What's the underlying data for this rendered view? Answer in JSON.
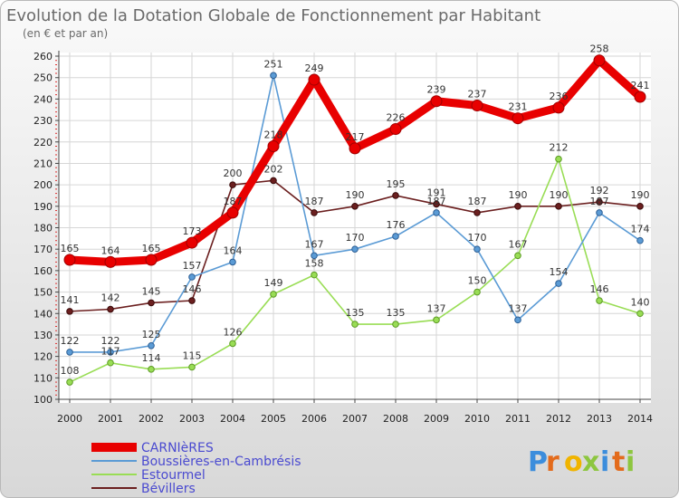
{
  "title": "Evolution de la Dotation Globale de Fonctionnement par Habitant",
  "subtitle": "(en € et par an)",
  "logo": "Proxiti",
  "chart_data": {
    "type": "line",
    "x": [
      "2000",
      "2001",
      "2002",
      "2003",
      "2004",
      "2005",
      "2006",
      "2007",
      "2008",
      "2009",
      "2010",
      "2011",
      "2012",
      "2013",
      "2014"
    ],
    "ylim": [
      100,
      260
    ],
    "yticks": [
      100,
      110,
      120,
      130,
      140,
      150,
      160,
      170,
      180,
      190,
      200,
      210,
      220,
      230,
      240,
      250,
      260
    ],
    "grid": true,
    "legend_position": "bottom-left",
    "series": [
      {
        "name": "CARNIèRES",
        "color": "#e80000",
        "values": [
          165,
          164,
          165,
          173,
          187,
          218,
          249,
          217,
          226,
          239,
          237,
          231,
          236,
          258,
          241
        ]
      },
      {
        "name": "Boussières-en-Cambrésis",
        "color": "#5b9bd5",
        "values": [
          122,
          122,
          125,
          157,
          164,
          251,
          167,
          170,
          176,
          187,
          170,
          137,
          154,
          187,
          174
        ]
      },
      {
        "name": "Estourmel",
        "color": "#99dd55",
        "values": [
          108,
          117,
          114,
          115,
          126,
          149,
          158,
          135,
          135,
          137,
          150,
          167,
          212,
          146,
          140
        ]
      },
      {
        "name": "Bévillers",
        "color": "#6b1f1f",
        "values": [
          141,
          142,
          145,
          146,
          200,
          202,
          187,
          190,
          195,
          191,
          187,
          190,
          190,
          192,
          190
        ]
      }
    ],
    "point_labels": [
      {
        "series": 0,
        "index": 0,
        "text": "165"
      },
      {
        "series": 0,
        "index": 1,
        "text": "164"
      },
      {
        "series": 0,
        "index": 2,
        "text": "165"
      },
      {
        "series": 0,
        "index": 3,
        "text": "173"
      },
      {
        "series": 0,
        "index": 4,
        "text": "187"
      },
      {
        "series": 0,
        "index": 5,
        "text": "218"
      },
      {
        "series": 0,
        "index": 6,
        "text": "249"
      },
      {
        "series": 0,
        "index": 7,
        "text": "217"
      },
      {
        "series": 0,
        "index": 8,
        "text": "226"
      },
      {
        "series": 0,
        "index": 9,
        "text": "239"
      },
      {
        "series": 0,
        "index": 10,
        "text": "237"
      },
      {
        "series": 0,
        "index": 11,
        "text": "231"
      },
      {
        "series": 0,
        "index": 12,
        "text": "236"
      },
      {
        "series": 0,
        "index": 13,
        "text": "258"
      },
      {
        "series": 0,
        "index": 14,
        "text": "241"
      },
      {
        "series": 1,
        "index": 0,
        "text": "122"
      },
      {
        "series": 1,
        "index": 1,
        "text": "122"
      },
      {
        "series": 1,
        "index": 2,
        "text": "125"
      },
      {
        "series": 1,
        "index": 3,
        "text": "157"
      },
      {
        "series": 1,
        "index": 4,
        "text": "164"
      },
      {
        "series": 1,
        "index": 5,
        "text": "251"
      },
      {
        "series": 1,
        "index": 6,
        "text": "167"
      },
      {
        "series": 1,
        "index": 7,
        "text": "170"
      },
      {
        "series": 1,
        "index": 8,
        "text": "176"
      },
      {
        "series": 1,
        "index": 9,
        "text": "187"
      },
      {
        "series": 1,
        "index": 10,
        "text": "170"
      },
      {
        "series": 1,
        "index": 11,
        "text": "137"
      },
      {
        "series": 1,
        "index": 12,
        "text": "154"
      },
      {
        "series": 1,
        "index": 13,
        "text": "187"
      },
      {
        "series": 1,
        "index": 14,
        "text": "174"
      },
      {
        "series": 2,
        "index": 0,
        "text": "108"
      },
      {
        "series": 2,
        "index": 1,
        "text": "117"
      },
      {
        "series": 2,
        "index": 2,
        "text": "114"
      },
      {
        "series": 2,
        "index": 3,
        "text": "115"
      },
      {
        "series": 2,
        "index": 4,
        "text": "126"
      },
      {
        "series": 2,
        "index": 5,
        "text": "149"
      },
      {
        "series": 2,
        "index": 6,
        "text": "158"
      },
      {
        "series": 2,
        "index": 7,
        "text": "135"
      },
      {
        "series": 2,
        "index": 8,
        "text": "135"
      },
      {
        "series": 2,
        "index": 9,
        "text": "137"
      },
      {
        "series": 2,
        "index": 10,
        "text": "150"
      },
      {
        "series": 2,
        "index": 11,
        "text": "167"
      },
      {
        "series": 2,
        "index": 12,
        "text": "212"
      },
      {
        "series": 2,
        "index": 13,
        "text": "146"
      },
      {
        "series": 2,
        "index": 14,
        "text": "140"
      },
      {
        "series": 3,
        "index": 0,
        "text": "141"
      },
      {
        "series": 3,
        "index": 1,
        "text": "142"
      },
      {
        "series": 3,
        "index": 2,
        "text": "145"
      },
      {
        "series": 3,
        "index": 3,
        "text": "146"
      },
      {
        "series": 3,
        "index": 4,
        "text": "200"
      },
      {
        "series": 3,
        "index": 5,
        "text": "202"
      },
      {
        "series": 3,
        "index": 6,
        "text": "187"
      },
      {
        "series": 3,
        "index": 7,
        "text": "190"
      },
      {
        "series": 3,
        "index": 8,
        "text": "195"
      },
      {
        "series": 3,
        "index": 9,
        "text": "191"
      },
      {
        "series": 3,
        "index": 10,
        "text": "187"
      },
      {
        "series": 3,
        "index": 11,
        "text": "190"
      },
      {
        "series": 3,
        "index": 12,
        "text": "190"
      },
      {
        "series": 3,
        "index": 13,
        "text": "192"
      },
      {
        "series": 3,
        "index": 14,
        "text": "190"
      }
    ]
  }
}
